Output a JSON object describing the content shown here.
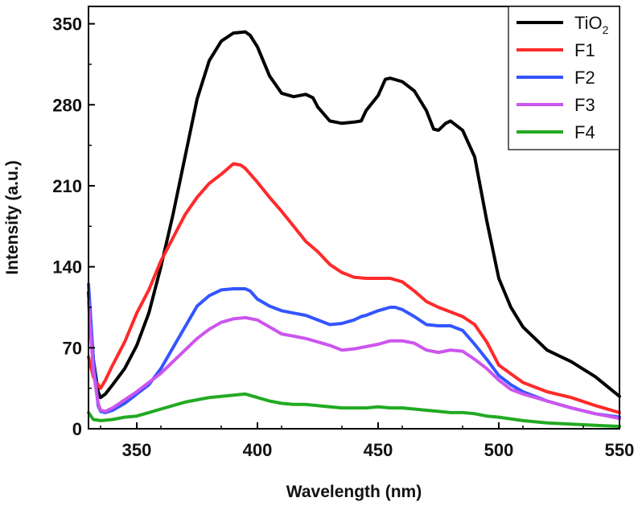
{
  "chart_data": {
    "type": "line",
    "title": "",
    "xlabel": "Wavelength (nm)",
    "ylabel": "Intensity (a.u.)",
    "xlim": [
      330,
      550
    ],
    "ylim": [
      0,
      365
    ],
    "xticks": [
      350,
      400,
      450,
      500,
      550
    ],
    "yticks": [
      0,
      70,
      140,
      210,
      280,
      350
    ],
    "grid": false,
    "legend_position": "top-right",
    "series": [
      {
        "name": "TiO",
        "name_subscript": "2",
        "color": "#000000",
        "x": [
          330,
          332,
          334,
          335,
          337,
          340,
          345,
          350,
          355,
          360,
          365,
          370,
          375,
          380,
          385,
          390,
          395,
          397,
          400,
          405,
          410,
          415,
          420,
          423,
          425,
          430,
          435,
          440,
          443,
          445,
          450,
          453,
          455,
          460,
          465,
          470,
          473,
          475,
          478,
          480,
          485,
          490,
          495,
          500,
          505,
          510,
          515,
          520,
          525,
          530,
          540,
          550
        ],
        "y": [
          118,
          60,
          32,
          27,
          30,
          38,
          52,
          72,
          100,
          140,
          185,
          235,
          285,
          318,
          335,
          342,
          343,
          340,
          330,
          305,
          290,
          287,
          289,
          286,
          278,
          266,
          264,
          265,
          266,
          275,
          288,
          302,
          303,
          300,
          292,
          275,
          259,
          258,
          264,
          266,
          258,
          235,
          180,
          130,
          105,
          88,
          78,
          68,
          63,
          58,
          45,
          28
        ]
      },
      {
        "name": "F1",
        "color": "#ff2a2a",
        "x": [
          330,
          332,
          334,
          335,
          337,
          340,
          345,
          350,
          355,
          360,
          365,
          370,
          375,
          380,
          385,
          390,
          393,
          395,
          400,
          405,
          410,
          415,
          420,
          425,
          430,
          435,
          440,
          445,
          450,
          455,
          460,
          465,
          470,
          475,
          480,
          485,
          490,
          495,
          500,
          510,
          520,
          530,
          540,
          550
        ],
        "y": [
          62,
          45,
          38,
          35,
          42,
          55,
          75,
          100,
          120,
          145,
          165,
          185,
          200,
          212,
          220,
          229,
          228,
          225,
          213,
          200,
          188,
          175,
          162,
          153,
          142,
          135,
          131,
          130,
          130,
          130,
          127,
          119,
          110,
          105,
          101,
          97,
          90,
          75,
          55,
          40,
          32,
          27,
          20,
          14
        ]
      },
      {
        "name": "F2",
        "color": "#3355ff",
        "x": [
          330,
          332,
          334,
          335,
          337,
          340,
          345,
          350,
          355,
          360,
          365,
          370,
          375,
          380,
          385,
          390,
          395,
          397,
          400,
          405,
          410,
          415,
          420,
          425,
          430,
          435,
          440,
          443,
          445,
          450,
          455,
          457,
          460,
          465,
          470,
          475,
          480,
          485,
          490,
          495,
          500,
          505,
          510,
          520,
          530,
          540,
          550
        ],
        "y": [
          125,
          60,
          20,
          15,
          14,
          16,
          22,
          30,
          38,
          52,
          70,
          88,
          106,
          115,
          120,
          121,
          121,
          119,
          112,
          106,
          102,
          100,
          98,
          94,
          90,
          91,
          94,
          97,
          98,
          102,
          105,
          105,
          103,
          97,
          90,
          89,
          89,
          85,
          73,
          60,
          46,
          38,
          32,
          24,
          18,
          13,
          10
        ]
      },
      {
        "name": "F3",
        "color": "#cc55ee",
        "x": [
          330,
          332,
          334,
          335,
          337,
          340,
          345,
          350,
          355,
          360,
          365,
          370,
          375,
          380,
          385,
          390,
          395,
          400,
          405,
          410,
          415,
          420,
          425,
          430,
          435,
          440,
          445,
          450,
          455,
          460,
          465,
          470,
          475,
          480,
          485,
          490,
          495,
          500,
          505,
          510,
          520,
          530,
          540,
          550
        ],
        "y": [
          110,
          50,
          22,
          16,
          15,
          18,
          25,
          32,
          40,
          48,
          58,
          68,
          78,
          86,
          92,
          95,
          96,
          94,
          88,
          82,
          80,
          78,
          75,
          72,
          68,
          69,
          71,
          73,
          76,
          76,
          74,
          68,
          66,
          68,
          67,
          60,
          52,
          42,
          34,
          30,
          24,
          18,
          13,
          9
        ]
      },
      {
        "name": "F4",
        "color": "#22aa22",
        "x": [
          330,
          332,
          335,
          340,
          345,
          350,
          355,
          360,
          365,
          370,
          375,
          380,
          385,
          390,
          395,
          400,
          405,
          410,
          415,
          420,
          425,
          430,
          435,
          440,
          445,
          450,
          455,
          460,
          465,
          470,
          475,
          480,
          485,
          490,
          495,
          500,
          510,
          520,
          530,
          540,
          550
        ],
        "y": [
          14,
          8,
          7,
          8,
          10,
          11,
          14,
          17,
          20,
          23,
          25,
          27,
          28,
          29,
          30,
          27,
          24,
          22,
          21,
          21,
          20,
          19,
          18,
          18,
          18,
          19,
          18,
          18,
          17,
          16,
          15,
          14,
          14,
          13,
          11,
          10,
          7,
          5,
          4,
          3,
          2
        ]
      }
    ]
  }
}
